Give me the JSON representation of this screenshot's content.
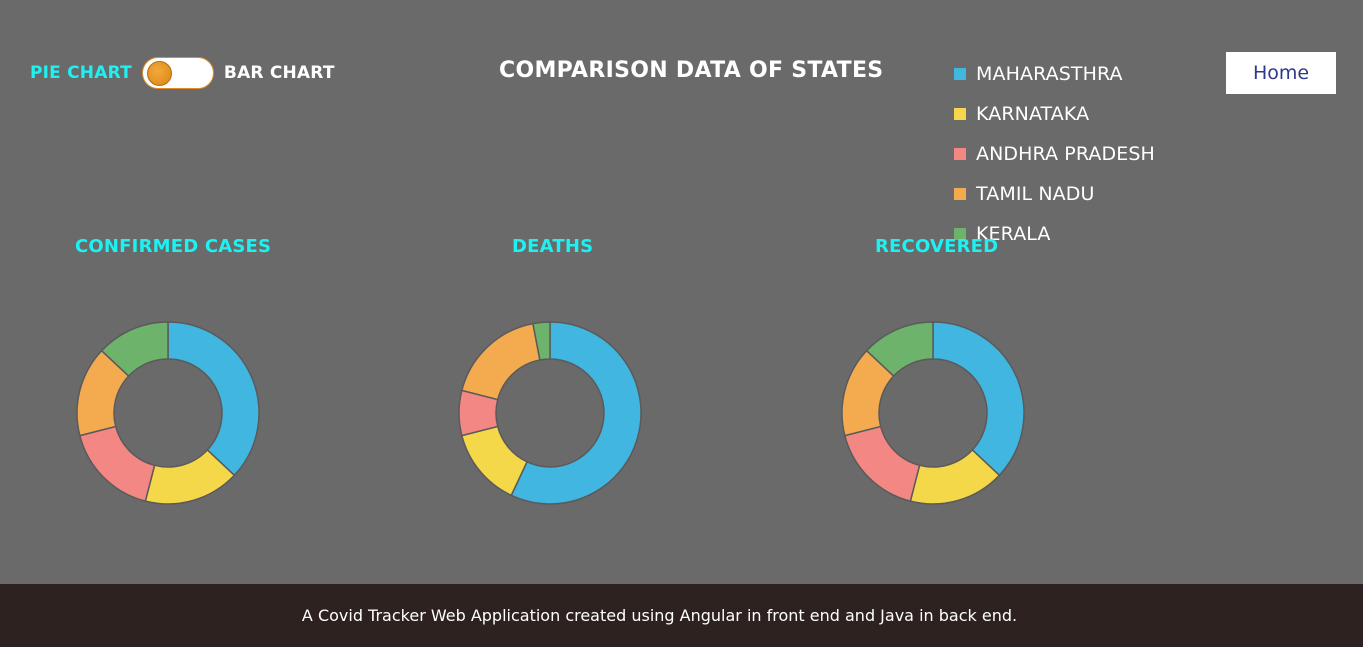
{
  "toggle": {
    "left_label": "PIE CHART",
    "right_label": "BAR CHART",
    "state": "pie"
  },
  "header": {
    "title": "COMPARISON DATA OF STATES",
    "home_label": "Home"
  },
  "legend": [
    {
      "label": "MAHARASTHRA",
      "color": "#41b6e0"
    },
    {
      "label": "KARNATAKA",
      "color": "#f5d84a"
    },
    {
      "label": "ANDHRA PRADESH",
      "color": "#f28784"
    },
    {
      "label": "TAMIL NADU",
      "color": "#f4ab50"
    },
    {
      "label": "KERALA",
      "color": "#6db36c"
    }
  ],
  "chart_data": [
    {
      "type": "pie",
      "title": "CONFIRMED CASES",
      "categories": [
        "MAHARASTHRA",
        "KARNATAKA",
        "ANDHRA PRADESH",
        "TAMIL NADU",
        "KERALA"
      ],
      "values": [
        37,
        17,
        17,
        16,
        13
      ]
    },
    {
      "type": "pie",
      "title": "DEATHS",
      "categories": [
        "MAHARASTHRA",
        "KARNATAKA",
        "ANDHRA PRADESH",
        "TAMIL NADU",
        "KERALA"
      ],
      "values": [
        57,
        14,
        8,
        18,
        3
      ]
    },
    {
      "type": "pie",
      "title": "RECOVERED",
      "categories": [
        "MAHARASTHRA",
        "KARNATAKA",
        "ANDHRA PRADESH",
        "TAMIL NADU",
        "KERALA"
      ],
      "values": [
        37,
        17,
        17,
        16,
        13
      ]
    }
  ],
  "footer": {
    "text": "A Covid Tracker Web Application created using Angular in front end and Java in back end."
  }
}
